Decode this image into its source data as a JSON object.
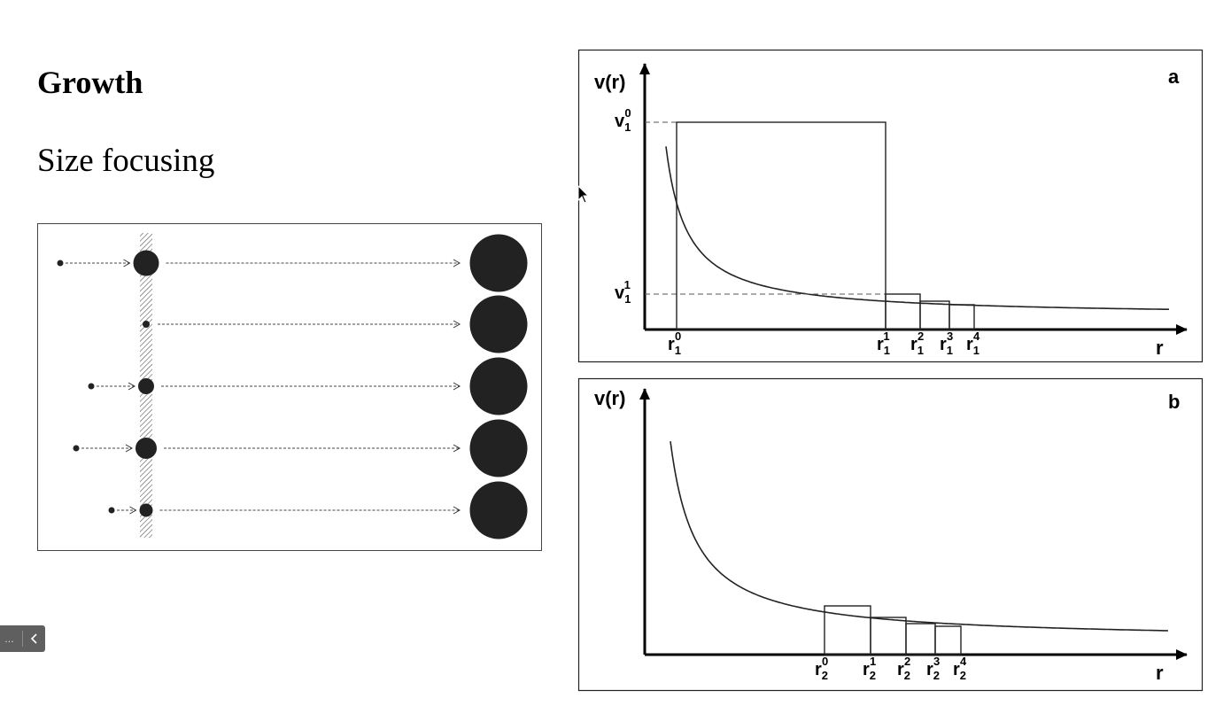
{
  "slide": {
    "title": "Growth",
    "subtitle": "Size focusing"
  },
  "panel_a": {
    "letter": "a",
    "y_axis_label": "v(r)",
    "x_axis_label": "r",
    "v_labels": [
      {
        "base": "v",
        "sub": "1",
        "sup": "0"
      },
      {
        "base": "v",
        "sub": "1",
        "sup": "1"
      }
    ],
    "r_labels": [
      {
        "base": "r",
        "sub": "1",
        "sup": "0"
      },
      {
        "base": "r",
        "sub": "1",
        "sup": "1"
      },
      {
        "base": "r",
        "sub": "1",
        "sup": "2"
      },
      {
        "base": "r",
        "sub": "1",
        "sup": "3"
      },
      {
        "base": "r",
        "sub": "1",
        "sup": "4"
      }
    ]
  },
  "panel_b": {
    "letter": "b",
    "y_axis_label": "v(r)",
    "x_axis_label": "r",
    "r_labels": [
      {
        "base": "r",
        "sub": "2",
        "sup": "0"
      },
      {
        "base": "r",
        "sub": "2",
        "sup": "1"
      },
      {
        "base": "r",
        "sub": "2",
        "sup": "2"
      },
      {
        "base": "r",
        "sub": "2",
        "sup": "3"
      },
      {
        "base": "r",
        "sub": "2",
        "sup": "4"
      }
    ]
  },
  "toolbar": {
    "text": "...",
    "back_icon": "chevron-left-icon"
  },
  "colors": {
    "ink": "#000000",
    "particle": "#222222",
    "toolbar_bg": "#5f5f5f"
  }
}
